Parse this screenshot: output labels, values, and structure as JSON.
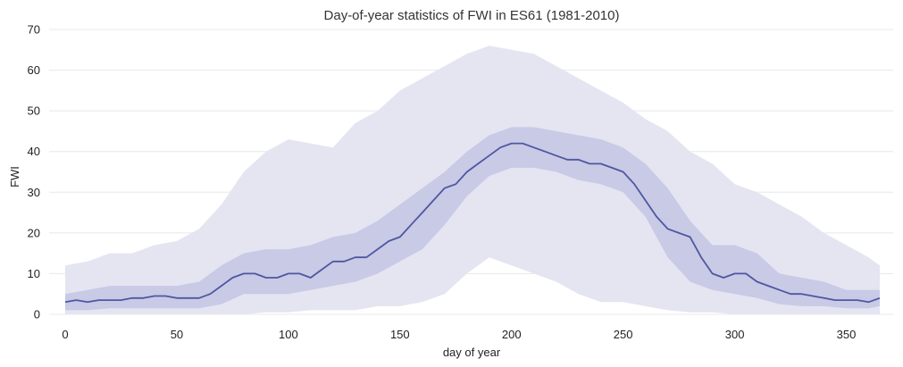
{
  "chart_data": {
    "type": "area",
    "title": "Day-of-year statistics of FWI in ES61 (1981-2010)",
    "xlabel": "day of year",
    "ylabel": "FWI",
    "xlim": [
      0,
      365
    ],
    "ylim": [
      0,
      70
    ],
    "xticks": [
      0,
      50,
      100,
      150,
      200,
      250,
      300,
      350
    ],
    "yticks": [
      0,
      10,
      20,
      30,
      40,
      50,
      60,
      70
    ],
    "grid": "horizontal",
    "colors": {
      "line": "#4f57a0",
      "inner_band": "#c8cae6",
      "outer_band": "#e4e5f1"
    },
    "series": [
      {
        "role": "median",
        "x": [
          0,
          5,
          10,
          15,
          20,
          25,
          30,
          35,
          40,
          45,
          50,
          55,
          60,
          65,
          70,
          75,
          80,
          85,
          90,
          95,
          100,
          105,
          110,
          115,
          120,
          125,
          130,
          135,
          140,
          145,
          150,
          155,
          160,
          165,
          170,
          175,
          180,
          185,
          190,
          195,
          200,
          205,
          210,
          215,
          220,
          225,
          230,
          235,
          240,
          245,
          250,
          255,
          260,
          265,
          270,
          275,
          280,
          285,
          290,
          295,
          300,
          305,
          310,
          315,
          320,
          325,
          330,
          335,
          340,
          345,
          350,
          355,
          360,
          365
        ],
        "values": [
          3,
          3.5,
          3,
          3.5,
          3.5,
          3.5,
          4,
          4,
          4.5,
          4.5,
          4,
          4,
          4,
          5,
          7,
          9,
          10,
          10,
          9,
          9,
          10,
          10,
          9,
          11,
          13,
          13,
          14,
          14,
          16,
          18,
          19,
          22,
          25,
          28,
          31,
          32,
          35,
          37,
          39,
          41,
          42,
          42,
          41,
          40,
          39,
          38,
          38,
          37,
          37,
          36,
          35,
          32,
          28,
          24,
          21,
          20,
          19,
          14,
          10,
          9,
          10,
          10,
          8,
          7,
          6,
          5,
          5,
          4.5,
          4,
          3.5,
          3.5,
          3.5,
          3,
          4
        ]
      },
      {
        "role": "inner-band",
        "x": [
          0,
          10,
          20,
          30,
          40,
          50,
          60,
          70,
          80,
          90,
          100,
          110,
          120,
          130,
          140,
          150,
          160,
          170,
          180,
          190,
          200,
          210,
          220,
          230,
          240,
          250,
          260,
          270,
          280,
          290,
          300,
          310,
          320,
          330,
          340,
          350,
          360,
          365
        ],
        "lower": [
          1,
          1,
          1.5,
          1.5,
          1.5,
          1.5,
          1.5,
          2.5,
          5,
          5,
          5,
          6,
          7,
          8,
          10,
          13,
          16,
          22,
          29,
          34,
          36,
          36,
          35,
          33,
          32,
          30,
          24,
          14,
          8,
          6,
          5,
          4,
          2.5,
          2,
          2,
          1.5,
          1.5,
          2
        ],
        "upper": [
          5,
          6,
          7,
          7,
          7,
          7,
          8,
          12,
          15,
          16,
          16,
          17,
          19,
          20,
          23,
          27,
          31,
          35,
          40,
          44,
          46,
          46,
          45,
          44,
          43,
          41,
          37,
          31,
          23,
          17,
          17,
          15,
          10,
          9,
          8,
          6,
          6,
          6
        ]
      },
      {
        "role": "outer-band",
        "x": [
          0,
          10,
          20,
          30,
          40,
          50,
          60,
          70,
          80,
          90,
          100,
          110,
          120,
          130,
          140,
          150,
          160,
          170,
          180,
          190,
          200,
          210,
          220,
          230,
          240,
          250,
          260,
          270,
          280,
          290,
          300,
          310,
          320,
          330,
          340,
          350,
          360,
          365
        ],
        "lower": [
          0,
          0,
          0,
          0,
          0,
          0,
          0,
          0,
          0,
          0.5,
          0.5,
          1,
          1,
          1,
          2,
          2,
          3,
          5,
          10,
          14,
          12,
          10,
          8,
          5,
          3,
          3,
          2,
          1,
          0.5,
          0.5,
          0,
          0,
          0,
          0,
          0,
          0,
          0,
          0
        ],
        "upper": [
          12,
          13,
          15,
          15,
          17,
          18,
          21,
          27,
          35,
          40,
          43,
          42,
          41,
          47,
          50,
          55,
          58,
          61,
          64,
          66,
          65,
          64,
          61,
          58,
          55,
          52,
          48,
          45,
          40,
          37,
          32,
          30,
          27,
          24,
          20,
          17,
          14,
          12
        ]
      }
    ]
  }
}
